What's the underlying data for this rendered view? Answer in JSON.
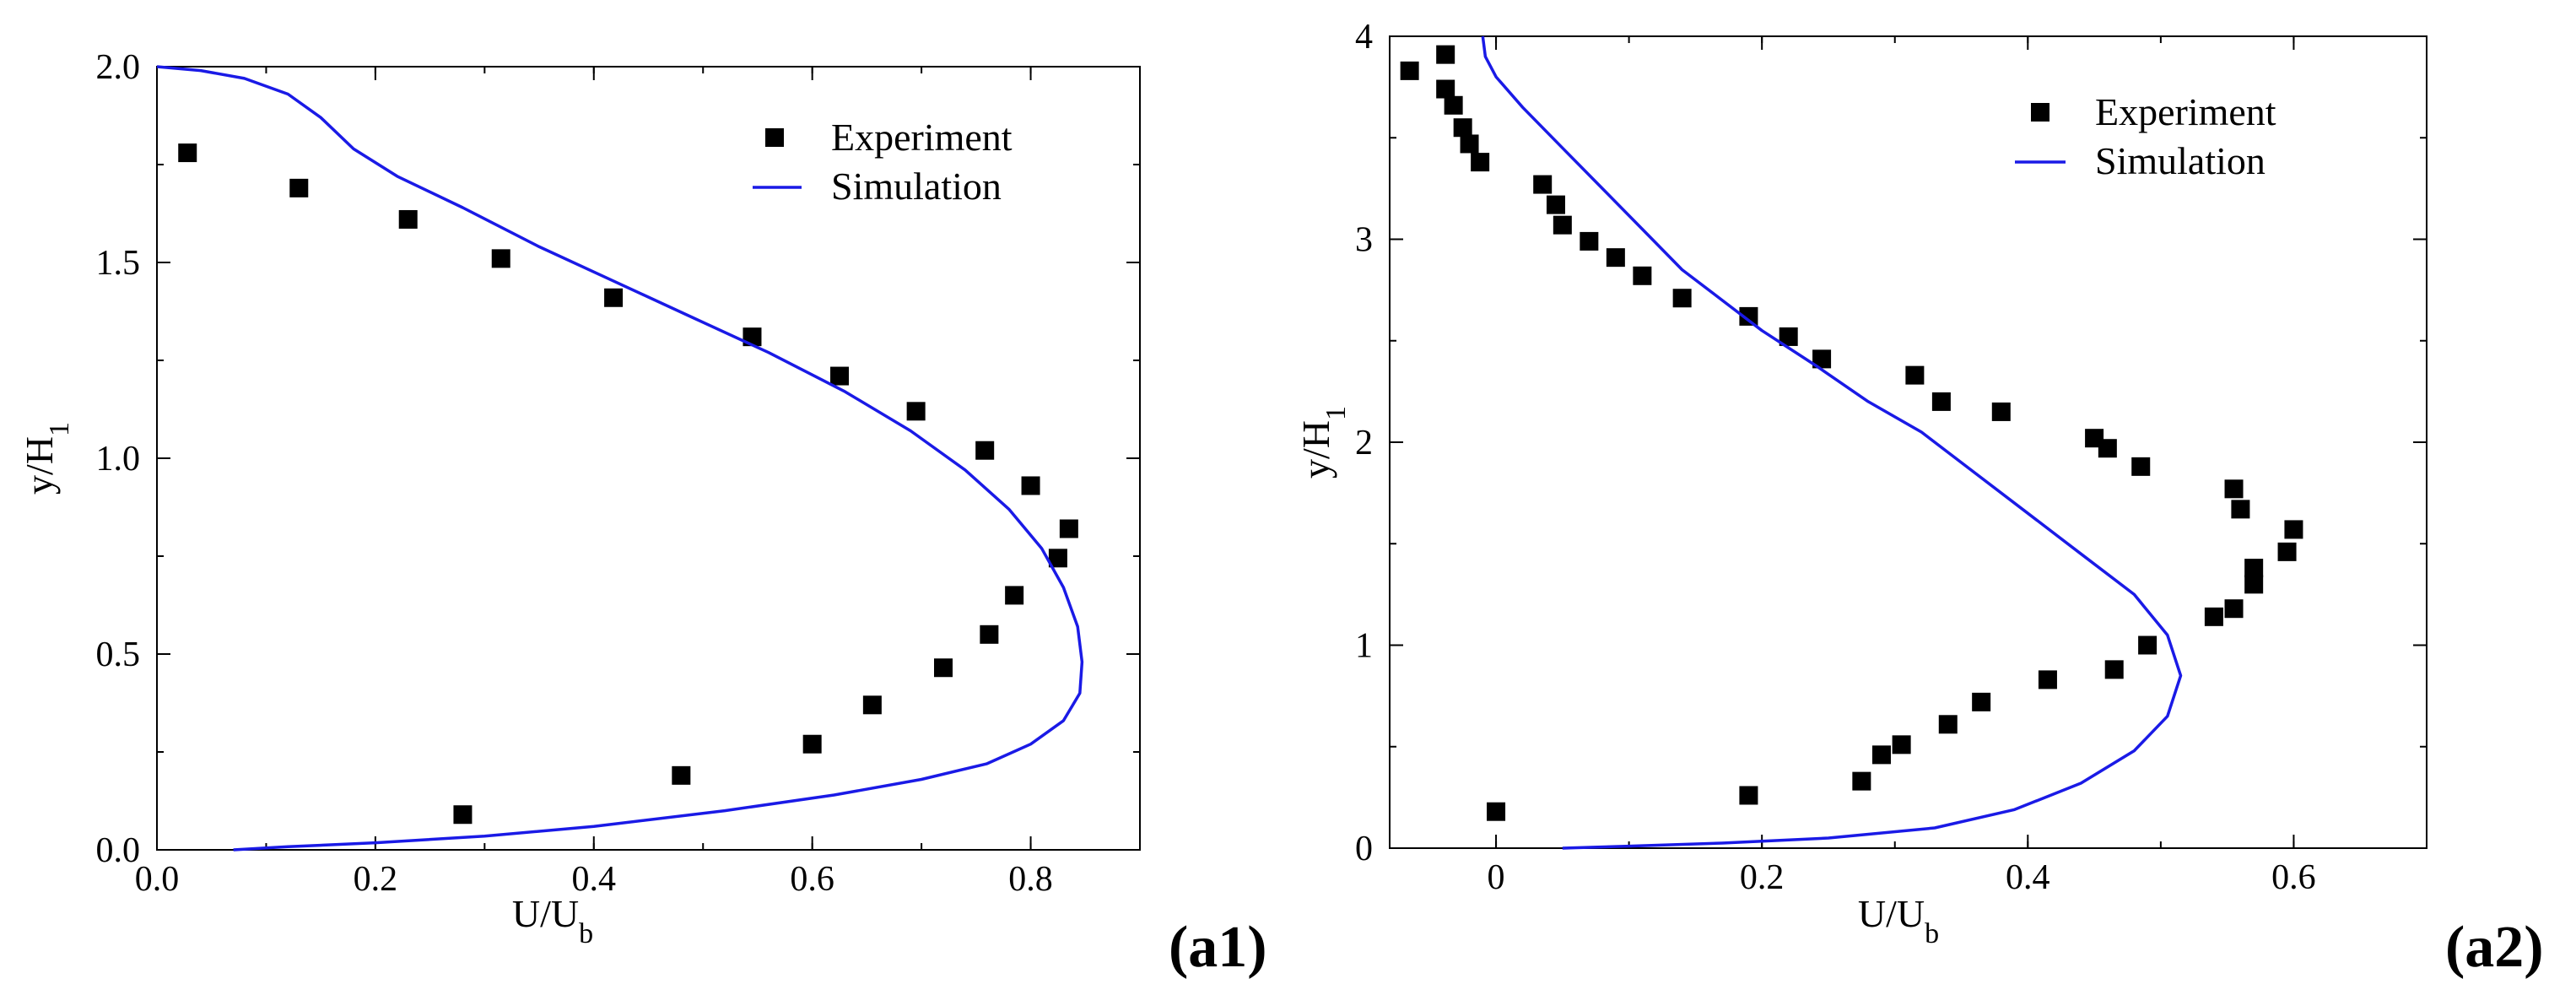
{
  "chart_data": [
    {
      "type": "scatter",
      "panel_label": "(a1)",
      "xlabel": "U/U",
      "xlabel_sub": "b",
      "ylabel": "y/H",
      "ylabel_sub": "1",
      "xlim": [
        0,
        0.9
      ],
      "ylim": [
        0,
        2
      ],
      "xticks": [
        0,
        0.2,
        0.4,
        0.6,
        0.8
      ],
      "xtick_labels": [
        "0.0",
        "0.2",
        "0.4",
        "0.6",
        "0.8"
      ],
      "yticks": [
        0,
        0.5,
        1,
        1.5,
        2
      ],
      "ytick_labels": [
        "0.0",
        "0.5",
        "1.0",
        "1.5",
        "2.0"
      ],
      "legend_position": "top-right",
      "series": [
        {
          "name": "Experiment",
          "kind": "markers",
          "marker": "square",
          "color": "#000000",
          "points": [
            [
              0.028,
              1.78
            ],
            [
              0.13,
              1.69
            ],
            [
              0.23,
              1.61
            ],
            [
              0.315,
              1.51
            ],
            [
              0.418,
              1.41
            ],
            [
              0.545,
              1.31
            ],
            [
              0.625,
              1.21
            ],
            [
              0.695,
              1.12
            ],
            [
              0.758,
              1.02
            ],
            [
              0.8,
              0.93
            ],
            [
              0.835,
              0.82
            ],
            [
              0.825,
              0.745
            ],
            [
              0.785,
              0.65
            ],
            [
              0.762,
              0.55
            ],
            [
              0.72,
              0.465
            ],
            [
              0.655,
              0.37
            ],
            [
              0.6,
              0.27
            ],
            [
              0.48,
              0.19
            ],
            [
              0.28,
              0.09
            ]
          ]
        },
        {
          "name": "Simulation",
          "kind": "line",
          "color": "#1a1ae6",
          "points": [
            [
              0.0,
              2.0
            ],
            [
              0.04,
              1.99
            ],
            [
              0.08,
              1.97
            ],
            [
              0.12,
              1.93
            ],
            [
              0.15,
              1.87
            ],
            [
              0.18,
              1.79
            ],
            [
              0.22,
              1.72
            ],
            [
              0.28,
              1.64
            ],
            [
              0.35,
              1.54
            ],
            [
              0.42,
              1.45
            ],
            [
              0.49,
              1.36
            ],
            [
              0.56,
              1.27
            ],
            [
              0.63,
              1.17
            ],
            [
              0.69,
              1.07
            ],
            [
              0.74,
              0.97
            ],
            [
              0.78,
              0.87
            ],
            [
              0.81,
              0.77
            ],
            [
              0.83,
              0.67
            ],
            [
              0.843,
              0.57
            ],
            [
              0.847,
              0.48
            ],
            [
              0.845,
              0.4
            ],
            [
              0.83,
              0.33
            ],
            [
              0.8,
              0.27
            ],
            [
              0.76,
              0.22
            ],
            [
              0.7,
              0.18
            ],
            [
              0.62,
              0.14
            ],
            [
              0.52,
              0.1
            ],
            [
              0.4,
              0.06
            ],
            [
              0.3,
              0.035
            ],
            [
              0.2,
              0.018
            ],
            [
              0.12,
              0.008
            ],
            [
              0.07,
              0.0
            ]
          ]
        }
      ]
    },
    {
      "type": "scatter",
      "panel_label": "(a2)",
      "xlabel": "U/U",
      "xlabel_sub": "b",
      "ylabel": "y/H",
      "ylabel_sub": "1",
      "xlim": [
        -0.08,
        0.7
      ],
      "ylim": [
        0,
        4
      ],
      "xticks": [
        0,
        0.2,
        0.4,
        0.6
      ],
      "xtick_labels": [
        "0",
        "0.2",
        "0.4",
        "0.6"
      ],
      "yticks": [
        0,
        1,
        2,
        3,
        4
      ],
      "ytick_labels": [
        "0",
        "1",
        "2",
        "3",
        "4"
      ],
      "legend_position": "top-right",
      "series": [
        {
          "name": "Experiment",
          "kind": "markers",
          "marker": "square",
          "color": "#000000",
          "points": [
            [
              -0.065,
              3.83
            ],
            [
              -0.038,
              3.91
            ],
            [
              -0.038,
              3.74
            ],
            [
              -0.032,
              3.66
            ],
            [
              -0.025,
              3.55
            ],
            [
              -0.02,
              3.47
            ],
            [
              -0.012,
              3.38
            ],
            [
              0.035,
              3.27
            ],
            [
              0.045,
              3.17
            ],
            [
              0.05,
              3.07
            ],
            [
              0.07,
              2.99
            ],
            [
              0.09,
              2.91
            ],
            [
              0.11,
              2.82
            ],
            [
              0.14,
              2.71
            ],
            [
              0.19,
              2.62
            ],
            [
              0.22,
              2.52
            ],
            [
              0.245,
              2.41
            ],
            [
              0.315,
              2.33
            ],
            [
              0.335,
              2.2
            ],
            [
              0.38,
              2.15
            ],
            [
              0.45,
              2.02
            ],
            [
              0.46,
              1.97
            ],
            [
              0.485,
              1.88
            ],
            [
              0.555,
              1.77
            ],
            [
              0.56,
              1.67
            ],
            [
              0.6,
              1.57
            ],
            [
              0.595,
              1.46
            ],
            [
              0.57,
              1.38
            ],
            [
              0.57,
              1.3
            ],
            [
              0.555,
              1.18
            ],
            [
              0.54,
              1.14
            ],
            [
              0.49,
              1.0
            ],
            [
              0.465,
              0.88
            ],
            [
              0.415,
              0.83
            ],
            [
              0.365,
              0.72
            ],
            [
              0.34,
              0.61
            ],
            [
              0.305,
              0.51
            ],
            [
              0.29,
              0.46
            ],
            [
              0.275,
              0.33
            ],
            [
              0.19,
              0.26
            ],
            [
              0.0,
              0.18
            ]
          ]
        },
        {
          "name": "Simulation",
          "kind": "line",
          "color": "#1a1ae6",
          "points": [
            [
              -0.01,
              4.0
            ],
            [
              -0.008,
              3.9
            ],
            [
              0.0,
              3.8
            ],
            [
              0.02,
              3.65
            ],
            [
              0.05,
              3.45
            ],
            [
              0.08,
              3.25
            ],
            [
              0.11,
              3.05
            ],
            [
              0.14,
              2.85
            ],
            [
              0.17,
              2.7
            ],
            [
              0.2,
              2.55
            ],
            [
              0.24,
              2.38
            ],
            [
              0.28,
              2.2
            ],
            [
              0.32,
              2.05
            ],
            [
              0.36,
              1.85
            ],
            [
              0.4,
              1.65
            ],
            [
              0.44,
              1.45
            ],
            [
              0.48,
              1.25
            ],
            [
              0.505,
              1.05
            ],
            [
              0.515,
              0.85
            ],
            [
              0.505,
              0.65
            ],
            [
              0.48,
              0.48
            ],
            [
              0.44,
              0.32
            ],
            [
              0.39,
              0.19
            ],
            [
              0.33,
              0.1
            ],
            [
              0.25,
              0.05
            ],
            [
              0.17,
              0.025
            ],
            [
              0.1,
              0.01
            ],
            [
              0.05,
              0.0
            ]
          ]
        }
      ]
    }
  ]
}
